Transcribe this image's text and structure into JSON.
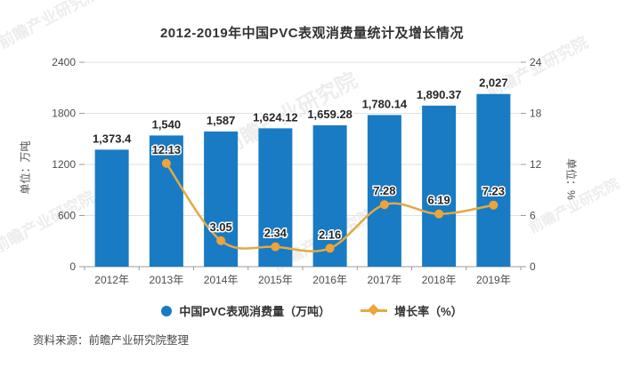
{
  "title": "2012-2019年中国PVC表观消费量统计及增长情况",
  "source": "资料来源：前瞻产业研究院整理",
  "watermark": "前瞻产业研究院",
  "axes": {
    "left_unit": "单位：万吨",
    "right_unit": "单位：%"
  },
  "legend": [
    {
      "label": "中国PVC表观消费量（万吨）",
      "type": "bar"
    },
    {
      "label": "增长率（%）",
      "type": "line"
    }
  ],
  "colors": {
    "bar": "#197bc3",
    "line": "#e0aa46",
    "marker": "#f0a338",
    "grid": "#e2e2e2",
    "axis": "#9b9b9b",
    "tick_text": "#4d4d4d",
    "label_text": "#262626"
  },
  "chart_data": {
    "type": "bar",
    "subtype": "bar+line combo",
    "title": "2012-2019年中国PVC表观消费量统计及增长情况",
    "categories": [
      "2012年",
      "2013年",
      "2014年",
      "2015年",
      "2016年",
      "2017年",
      "2018年",
      "2019年"
    ],
    "series": [
      {
        "name": "中国PVC表观消费量（万吨）",
        "type": "bar",
        "axis": "left",
        "values": [
          1373.4,
          1540,
          1587,
          1624.12,
          1659.28,
          1780.14,
          1890.37,
          2027
        ],
        "labels": [
          "1,373.4",
          "1,540",
          "1,587",
          "1,624.12",
          "1,659.28",
          "1,780.14",
          "1,890.37",
          "2,027"
        ]
      },
      {
        "name": "增长率（%）",
        "type": "line",
        "axis": "right",
        "values": [
          null,
          12.13,
          3.05,
          2.34,
          2.16,
          7.28,
          6.19,
          7.23
        ],
        "labels": [
          "",
          "12.13",
          "3.05",
          "2.34",
          "2.16",
          "7.28",
          "6.19",
          "7.23"
        ]
      }
    ],
    "left_axis": {
      "label": "单位：万吨",
      "min": 0,
      "max": 2400,
      "ticks": [
        0,
        600,
        1200,
        1800,
        2400
      ]
    },
    "right_axis": {
      "label": "单位：%",
      "min": 0,
      "max": 24,
      "ticks": [
        0,
        6,
        12,
        18,
        24
      ]
    },
    "grid": true,
    "legend_position": "bottom",
    "source": "资料来源：前瞻产业研究院整理"
  }
}
